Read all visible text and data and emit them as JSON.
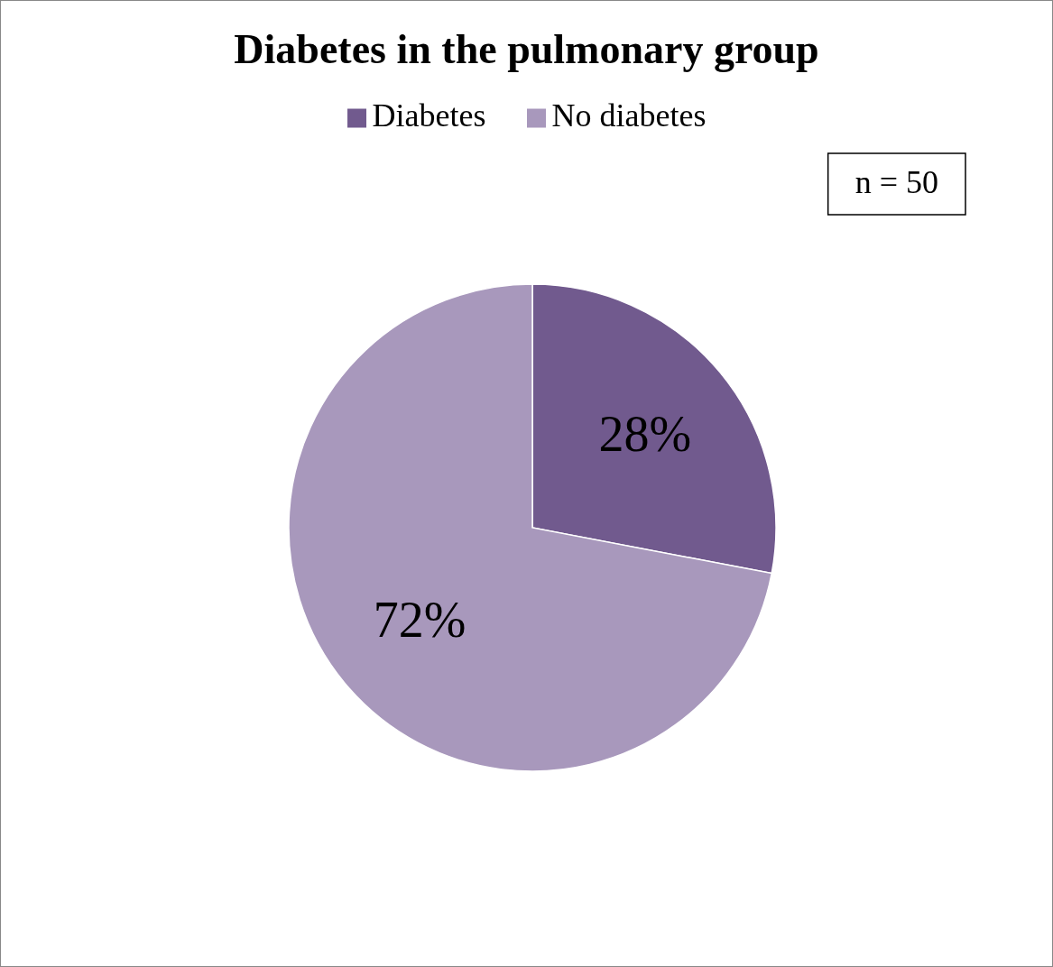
{
  "chart_data": {
    "type": "pie",
    "title": "Diabetes in the pulmonary group",
    "categories": [
      "Diabetes",
      "No diabetes"
    ],
    "values": [
      28,
      72
    ],
    "colors": [
      "#715a8e",
      "#a898bc"
    ],
    "value_labels": [
      "28%",
      "72%"
    ],
    "legend": "top",
    "annotations": [
      "n = 50"
    ]
  }
}
